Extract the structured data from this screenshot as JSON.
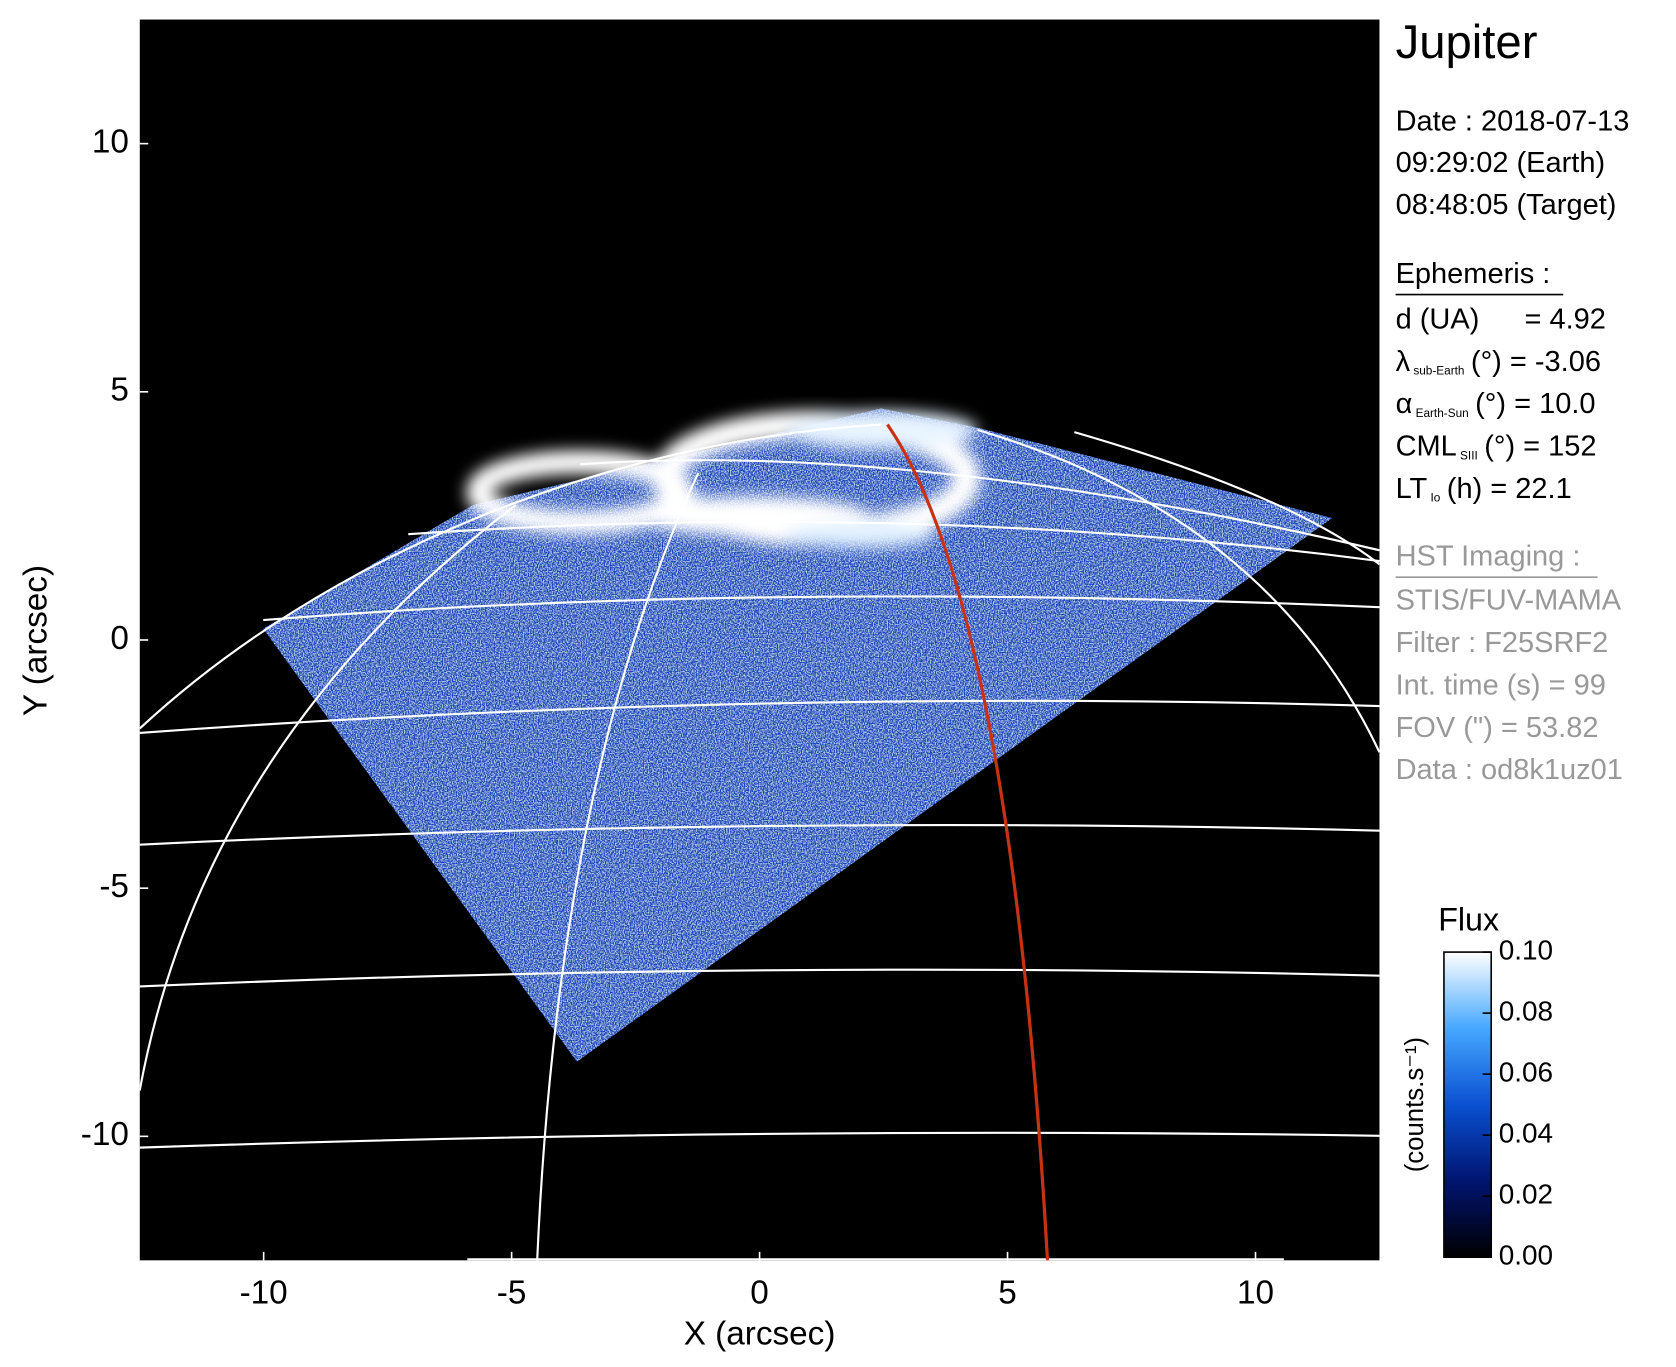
{
  "chart_data": {
    "type": "image",
    "xlabel": "X (arcsec)",
    "ylabel": "Y (arcsec)",
    "xlim": [
      -12.5,
      12.5
    ],
    "ylim": [
      -12.5,
      12.5
    ],
    "xticks": [
      -10,
      -5,
      0,
      5,
      10
    ],
    "yticks": [
      -10,
      -5,
      0,
      5,
      10
    ],
    "title": "Jupiter",
    "info": [
      "Date : 2018-07-13",
      "09:29:02 (Earth)",
      "08:48:05 (Target)"
    ],
    "ephemeris": {
      "heading": "Ephemeris :",
      "items": [
        {
          "main": "d (UA)",
          "rest": "= 4.92"
        },
        {
          "main": "λ",
          "sub": "sub-Earth",
          "rest": "(°) = -3.06"
        },
        {
          "main": "α",
          "sub": "Earth-Sun",
          "rest": "(°) = 10.0"
        },
        {
          "main": "CML",
          "sub": "SIII",
          "rest": "(°) = 152"
        },
        {
          "main": "LT",
          "sub": "Io",
          "rest": "(h) = 22.1"
        }
      ]
    },
    "imaging": {
      "heading": "HST Imaging :",
      "items": [
        "STIS/FUV-MAMA",
        "Filter : F25SRF2",
        "Int. time (s) = 99",
        "FOV (\") = 53.82",
        "Data : od8k1uz01"
      ]
    },
    "colorbar": {
      "label": "Flux",
      "unit": "(counts.s⁻¹)",
      "colormap": [
        "#000000",
        "#001470",
        "#0a50d2",
        "#46a8ff",
        "#ffffff"
      ],
      "lim": [
        0,
        0.1
      ],
      "ticks": [
        {
          "value": 0,
          "label": "0.00"
        },
        0.02,
        0.04,
        0.06,
        0.08,
        {
          "value": 0.1,
          "label": "0.10"
        }
      ]
    }
  }
}
